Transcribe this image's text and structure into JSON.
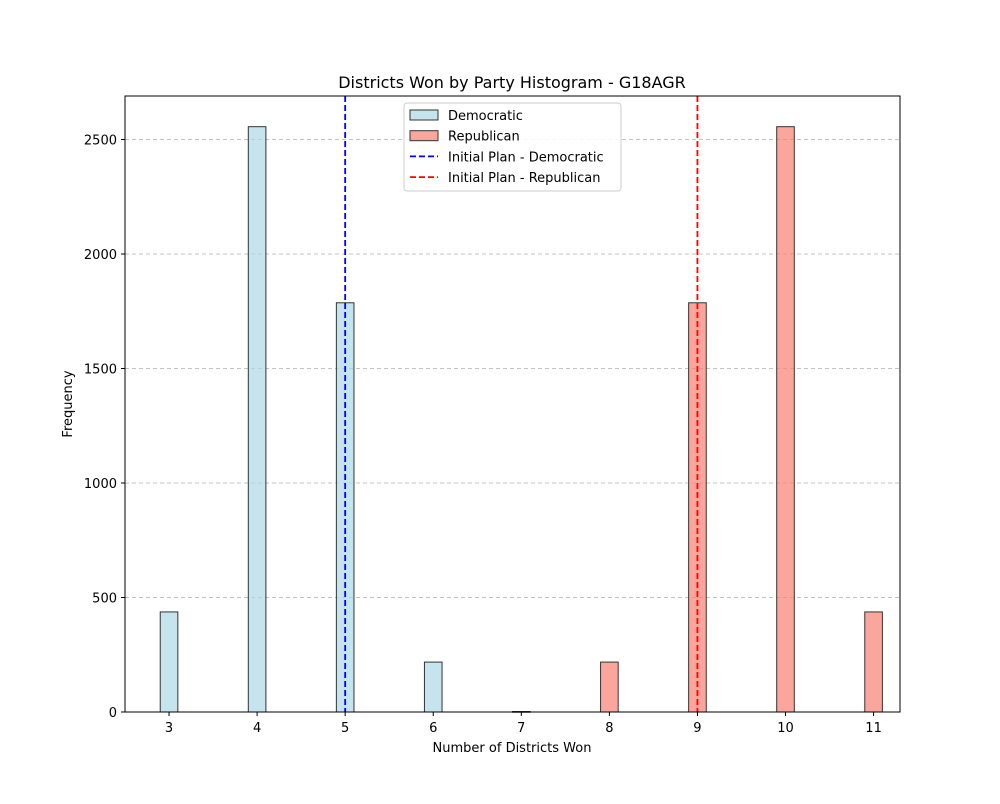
{
  "chart_data": {
    "type": "bar",
    "title": "Districts Won by Party Histogram - G18AGR",
    "xlabel": "Number of Districts Won",
    "ylabel": "Frequency",
    "xlim": [
      2.5,
      11.3
    ],
    "ylim": [
      0,
      2690
    ],
    "x_ticks": [
      3,
      4,
      5,
      6,
      7,
      8,
      9,
      10,
      11
    ],
    "y_ticks": [
      0,
      500,
      1000,
      1500,
      2000,
      2500
    ],
    "grid": "horizontal dashed",
    "legend_position": "top-center",
    "bar_width": 0.2,
    "series": [
      {
        "name": "Democratic",
        "color": "#add8e6",
        "edgecolor": "#333333",
        "points": [
          {
            "x": 3,
            "y": 437
          },
          {
            "x": 4,
            "y": 2556
          },
          {
            "x": 5,
            "y": 1787
          },
          {
            "x": 6,
            "y": 218
          },
          {
            "x": 7,
            "y": 2
          }
        ]
      },
      {
        "name": "Republican",
        "color": "#fa8072",
        "edgecolor": "#333333",
        "points": [
          {
            "x": 7,
            "y": 2
          },
          {
            "x": 8,
            "y": 218
          },
          {
            "x": 9,
            "y": 1787
          },
          {
            "x": 10,
            "y": 2556
          },
          {
            "x": 11,
            "y": 437
          }
        ]
      }
    ],
    "reference_lines": [
      {
        "name": "Initial Plan - Democratic",
        "x": 5,
        "color": "#0000ff"
      },
      {
        "name": "Initial Plan - Republican",
        "x": 9,
        "color": "#ff0000"
      }
    ]
  }
}
